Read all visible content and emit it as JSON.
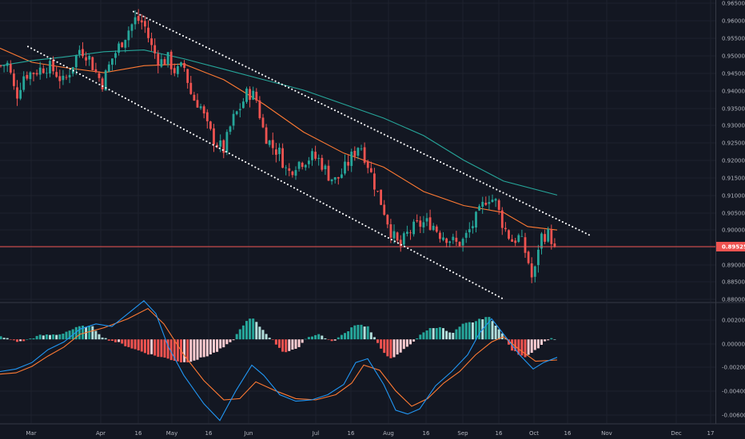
{
  "chart_data": [
    {
      "type": "candlestick",
      "panel": "price",
      "x_tick_labels": [
        "Mar",
        "Apr",
        "16",
        "May",
        "16",
        "Jun",
        "Jul",
        "16",
        "Aug",
        "16",
        "Sep",
        "16",
        "Oct",
        "16",
        "Nov",
        "Dec",
        "17"
      ],
      "y_tick_labels": [
        "0.96500",
        "0.96000",
        "0.95500",
        "0.95000",
        "0.94500",
        "0.94000",
        "0.93500",
        "0.93000",
        "0.92500",
        "0.92000",
        "0.91500",
        "0.91000",
        "0.90500",
        "0.90000",
        "0.89500",
        "0.89000",
        "0.88500",
        "0.88000"
      ],
      "ylim": [
        0.8795,
        0.9658
      ],
      "grid": true,
      "current_price": 0.89525,
      "current_price_label": "0.89525",
      "close_path": [
        [
          0,
          0.947
        ],
        [
          10,
          0.9475
        ],
        [
          20,
          0.938
        ],
        [
          30,
          0.9445
        ],
        [
          40,
          0.945
        ],
        [
          50,
          0.946
        ],
        [
          60,
          0.947
        ],
        [
          70,
          0.945
        ],
        [
          80,
          0.942
        ],
        [
          90,
          0.947
        ],
        [
          100,
          0.952
        ],
        [
          110,
          0.95
        ],
        [
          120,
          0.945
        ],
        [
          128,
          0.942
        ],
        [
          140,
          0.949
        ],
        [
          150,
          0.953
        ],
        [
          160,
          0.957
        ],
        [
          170,
          0.9605
        ],
        [
          180,
          0.959
        ],
        [
          190,
          0.952
        ],
        [
          200,
          0.948
        ],
        [
          210,
          0.949
        ],
        [
          220,
          0.945
        ],
        [
          230,
          0.947
        ],
        [
          240,
          0.938
        ],
        [
          250,
          0.936
        ],
        [
          260,
          0.929
        ],
        [
          270,
          0.925
        ],
        [
          280,
          0.923
        ],
        [
          290,
          0.931
        ],
        [
          300,
          0.935
        ],
        [
          310,
          0.9395
        ],
        [
          320,
          0.938
        ],
        [
          330,
          0.928
        ],
        [
          340,
          0.924
        ],
        [
          350,
          0.922
        ],
        [
          360,
          0.916
        ],
        [
          370,
          0.919
        ],
        [
          380,
          0.92
        ],
        [
          390,
          0.921
        ],
        [
          400,
          0.92
        ],
        [
          410,
          0.916
        ],
        [
          420,
          0.914
        ],
        [
          430,
          0.917
        ],
        [
          440,
          0.921
        ],
        [
          450,
          0.925
        ],
        [
          460,
          0.919
        ],
        [
          470,
          0.912
        ],
        [
          480,
          0.906
        ],
        [
          490,
          0.899
        ],
        [
          500,
          0.895
        ],
        [
          510,
          0.899
        ],
        [
          520,
          0.901
        ],
        [
          530,
          0.902
        ],
        [
          540,
          0.902
        ],
        [
          550,
          0.899
        ],
        [
          560,
          0.898
        ],
        [
          570,
          0.896
        ],
        [
          580,
          0.897
        ],
        [
          590,
          0.901
        ],
        [
          600,
          0.905
        ],
        [
          610,
          0.91
        ],
        [
          620,
          0.908
        ],
        [
          630,
          0.901
        ],
        [
          640,
          0.897
        ],
        [
          650,
          0.898
        ],
        [
          660,
          0.892
        ],
        [
          667,
          0.8845
        ],
        [
          675,
          0.898
        ],
        [
          685,
          0.899
        ],
        [
          697,
          0.8952
        ]
      ],
      "moving_averages": [
        {
          "color": "#ff7a33",
          "points": [
            [
              0,
              0.952
            ],
            [
              40,
              0.948
            ],
            [
              80,
              0.9465
            ],
            [
              130,
              0.945
            ],
            [
              180,
              0.947
            ],
            [
              230,
              0.9475
            ],
            [
              280,
              0.943
            ],
            [
              330,
              0.936
            ],
            [
              380,
              0.928
            ],
            [
              430,
              0.922
            ],
            [
              480,
              0.918
            ],
            [
              530,
              0.911
            ],
            [
              580,
              0.907
            ],
            [
              630,
              0.905
            ],
            [
              660,
              0.901
            ],
            [
              697,
              0.9
            ]
          ]
        },
        {
          "color": "#26a69a",
          "points": [
            [
              0,
              0.947
            ],
            [
              40,
              0.9485
            ],
            [
              80,
              0.9495
            ],
            [
              130,
              0.951
            ],
            [
              180,
              0.9515
            ],
            [
              230,
              0.949
            ],
            [
              280,
              0.946
            ],
            [
              330,
              0.943
            ],
            [
              380,
              0.94
            ],
            [
              430,
              0.936
            ],
            [
              480,
              0.932
            ],
            [
              530,
              0.927
            ],
            [
              580,
              0.92
            ],
            [
              630,
              0.914
            ],
            [
              697,
              0.91
            ]
          ]
        }
      ],
      "trendlines": [
        {
          "color": "#ffffff",
          "style": "dotted",
          "points": [
            [
              167,
              0.9625
            ],
            [
              738,
              0.8985
            ]
          ]
        },
        {
          "color": "#ffffff",
          "style": "dotted",
          "points": [
            [
              35,
              0.9525
            ],
            [
              632,
              0.88
            ]
          ]
        }
      ],
      "colors": {
        "up": "#26a69a",
        "down": "#ef5350",
        "price_line": "#ef5350"
      }
    },
    {
      "type": "macd",
      "panel": "oscillator",
      "y_tick_labels": [
        "0.00200",
        "0.00000",
        "-0.00200",
        "-0.00400",
        "-0.00600"
      ],
      "ylim": [
        -0.0065,
        0.0028
      ],
      "grid": true,
      "histogram": [
        [
          0,
          0.0002
        ],
        [
          25,
          -0.0002
        ],
        [
          50,
          0.0003
        ],
        [
          75,
          0.0004
        ],
        [
          100,
          0.001
        ],
        [
          115,
          0.001
        ],
        [
          130,
          0.0001
        ],
        [
          150,
          -0.0003
        ],
        [
          170,
          -0.0008
        ],
        [
          190,
          -0.0012
        ],
        [
          210,
          -0.0015
        ],
        [
          230,
          -0.0018
        ],
        [
          250,
          -0.0015
        ],
        [
          270,
          -0.001
        ],
        [
          290,
          -0.0002
        ],
        [
          305,
          0.0012
        ],
        [
          315,
          0.0017
        ],
        [
          325,
          0.001
        ],
        [
          340,
          0.0
        ],
        [
          355,
          -0.001
        ],
        [
          370,
          -0.0008
        ],
        [
          385,
          0.0002
        ],
        [
          400,
          0.0004
        ],
        [
          415,
          -0.0002
        ],
        [
          430,
          0.0004
        ],
        [
          445,
          0.0012
        ],
        [
          460,
          0.001
        ],
        [
          475,
          -0.0006
        ],
        [
          490,
          -0.0016
        ],
        [
          505,
          -0.0008
        ],
        [
          520,
          0.0
        ],
        [
          535,
          0.0008
        ],
        [
          550,
          0.001
        ],
        [
          565,
          0.0004
        ],
        [
          580,
          0.0012
        ],
        [
          595,
          0.0014
        ],
        [
          610,
          0.0018
        ],
        [
          625,
          0.0008
        ],
        [
          640,
          -0.0008
        ],
        [
          655,
          -0.0014
        ],
        [
          670,
          -0.0008
        ],
        [
          685,
          0.0
        ],
        [
          697,
          0.0001
        ]
      ],
      "macd_line": {
        "color": "#2196f3",
        "points": [
          [
            0,
            -0.0025
          ],
          [
            20,
            -0.0023
          ],
          [
            40,
            -0.0018
          ],
          [
            60,
            -0.0008
          ],
          [
            80,
            -0.0002
          ],
          [
            100,
            0.0008
          ],
          [
            120,
            0.0012
          ],
          [
            140,
            0.001
          ],
          [
            160,
            0.002
          ],
          [
            180,
            0.003
          ],
          [
            195,
            0.002
          ],
          [
            210,
            -0.0005
          ],
          [
            230,
            -0.0028
          ],
          [
            255,
            -0.005
          ],
          [
            275,
            -0.0063
          ],
          [
            295,
            -0.004
          ],
          [
            315,
            -0.002
          ],
          [
            330,
            -0.0028
          ],
          [
            350,
            -0.0043
          ],
          [
            370,
            -0.0048
          ],
          [
            390,
            -0.0047
          ],
          [
            410,
            -0.0043
          ],
          [
            430,
            -0.0035
          ],
          [
            445,
            -0.0018
          ],
          [
            460,
            -0.0015
          ],
          [
            480,
            -0.0035
          ],
          [
            495,
            -0.0055
          ],
          [
            510,
            -0.0058
          ],
          [
            525,
            -0.0054
          ],
          [
            545,
            -0.0036
          ],
          [
            565,
            -0.0025
          ],
          [
            585,
            -0.0012
          ],
          [
            600,
            0.0005
          ],
          [
            615,
            0.0016
          ],
          [
            630,
            0.0004
          ],
          [
            650,
            -0.0012
          ],
          [
            667,
            -0.0023
          ],
          [
            680,
            -0.0018
          ],
          [
            697,
            -0.0014
          ]
        ]
      },
      "signal_line": {
        "color": "#ff7a33",
        "points": [
          [
            0,
            -0.0027
          ],
          [
            20,
            -0.0026
          ],
          [
            40,
            -0.0021
          ],
          [
            60,
            -0.0013
          ],
          [
            80,
            -0.0006
          ],
          [
            100,
            0.0004
          ],
          [
            130,
            0.0009
          ],
          [
            160,
            0.0016
          ],
          [
            185,
            0.0024
          ],
          [
            205,
            0.0012
          ],
          [
            230,
            -0.0012
          ],
          [
            255,
            -0.0032
          ],
          [
            280,
            -0.0047
          ],
          [
            300,
            -0.0046
          ],
          [
            320,
            -0.0033
          ],
          [
            345,
            -0.004
          ],
          [
            370,
            -0.0046
          ],
          [
            395,
            -0.0047
          ],
          [
            420,
            -0.0043
          ],
          [
            440,
            -0.0034
          ],
          [
            455,
            -0.002
          ],
          [
            475,
            -0.0024
          ],
          [
            495,
            -0.004
          ],
          [
            515,
            -0.0052
          ],
          [
            535,
            -0.0046
          ],
          [
            555,
            -0.0034
          ],
          [
            575,
            -0.0025
          ],
          [
            595,
            -0.0012
          ],
          [
            615,
            -0.0002
          ],
          [
            630,
            0.0002
          ],
          [
            650,
            -0.0008
          ],
          [
            670,
            -0.0017
          ],
          [
            697,
            -0.0016
          ]
        ]
      },
      "colors": {
        "up_strong": "#26a69a",
        "up_weak": "#b2dfdb",
        "down_strong": "#ef5350",
        "down_weak": "#ffcdd2"
      }
    }
  ]
}
